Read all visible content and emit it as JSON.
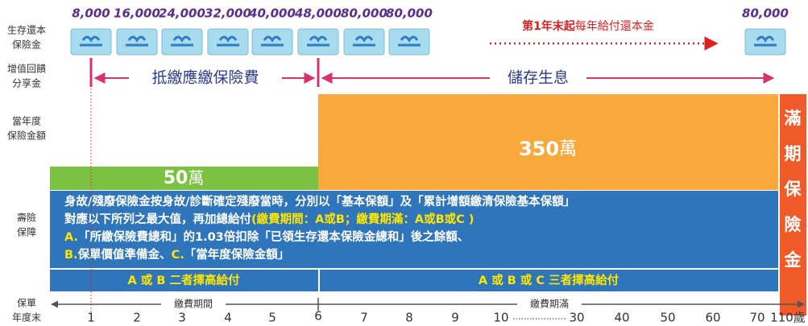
{
  "row_labels": [
    [
      "生存還本",
      "保險金"
    ],
    [
      "增值回饋",
      "分享金"
    ],
    [
      "當年度",
      "保險金額"
    ],
    [
      "壽險",
      "保障"
    ]
  ],
  "survival_payments": [
    "8,000",
    "16,000",
    "24,000",
    "32,000",
    "40,000",
    "48,000",
    "80,000",
    "80,000",
    "80,000"
  ],
  "annual_note": [
    "第1年末起",
    "每年給付還本金"
  ],
  "bonus_arrows": [
    "抵繳應繳保險費",
    "儲存生息"
  ],
  "sum_assured": [
    {
      "amount": "50",
      "unit": "萬"
    },
    {
      "amount": "350",
      "unit": "萬"
    }
  ],
  "maturity": [
    "滿",
    "期",
    "保",
    "險",
    "金"
  ],
  "death_benefit": [
    [
      "身故/殘廢保險金按身故/診斷確定殘廢當時，分別以「基本保額」及「累計增額繳清保險基本保額」"
    ],
    [
      "對應以下所列之最大值，再加總給付",
      "(繳費期間：A或B；繳費期滿：A或B或C )"
    ],
    [
      "A.",
      "「所繳保險費總和」的1.03倍扣除「已領生存還本保險金總和」後之餘額、"
    ],
    [
      "B.",
      "保單價值準備金、",
      "C.",
      "「當年度保險金額」"
    ]
  ],
  "payout_rules": [
    "A 或 B 二者擇高給付",
    "A 或 B 或 C 三者擇高給付"
  ],
  "timeline": {
    "label": [
      "保單",
      "年度末"
    ],
    "phases": [
      "繳費期間",
      "繳費期滿"
    ],
    "years": [
      "1",
      "2",
      "3",
      "4",
      "5",
      "6",
      "7",
      "8",
      "9",
      "10",
      "30",
      "40",
      "50",
      "60",
      "70",
      "110歲"
    ]
  }
}
